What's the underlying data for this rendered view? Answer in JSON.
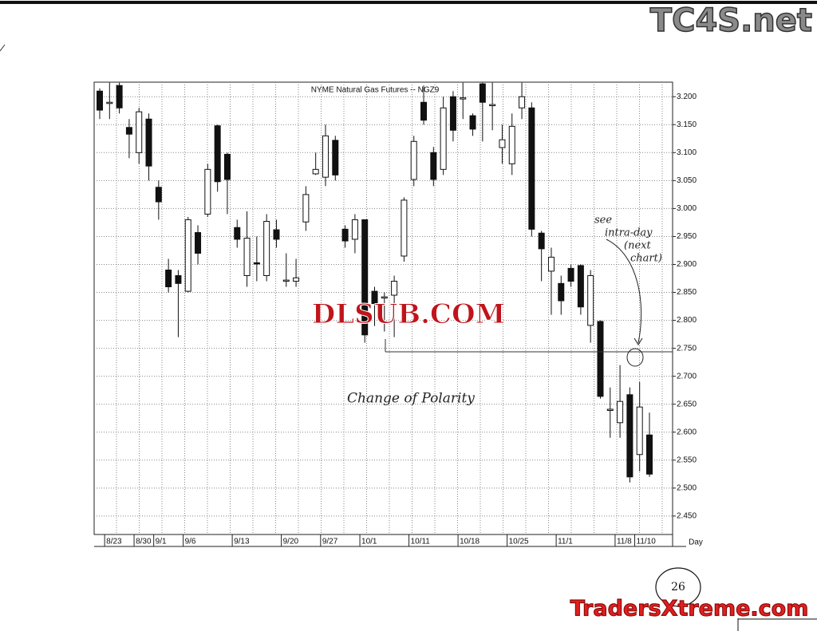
{
  "chart_data": {
    "type": "candlestick",
    "title": "NYME  Natural Gas Futures -- NGZ9",
    "x_label": "Day",
    "categories": [
      null,
      "8/23",
      null,
      null,
      "8/30",
      null,
      "9/1",
      null,
      null,
      "9/6",
      null,
      null,
      null,
      null,
      "9/13",
      null,
      null,
      null,
      null,
      "9/20",
      null,
      null,
      null,
      "9/27",
      null,
      null,
      null,
      "10/1",
      null,
      null,
      null,
      null,
      "10/11",
      null,
      null,
      null,
      null,
      "10/18",
      null,
      null,
      null,
      null,
      "10/25",
      null,
      null,
      null,
      null,
      "11/1",
      null,
      null,
      null,
      null,
      null,
      "11/8",
      null,
      "11/10",
      null
    ],
    "open": [
      3.21,
      3.19,
      3.22,
      3.145,
      3.1,
      3.16,
      3.038,
      2.89,
      2.88,
      2.852,
      2.957,
      2.99,
      3.148,
      3.097,
      2.966,
      2.88,
      2.903,
      2.88,
      2.962,
      2.872,
      2.87,
      2.976,
      3.062,
      3.056,
      3.122,
      2.963,
      2.945,
      2.98,
      2.852,
      2.842,
      2.845,
      2.915,
      3.052,
      3.19,
      3.1,
      3.07,
      3.2,
      3.196,
      3.166,
      3.223,
      3.186,
      3.109,
      3.08,
      3.18,
      3.18,
      2.956,
      2.888,
      2.866,
      2.893,
      2.898,
      2.791,
      2.798,
      2.641,
      2.617,
      2.667,
      2.56,
      2.595
    ],
    "high": [
      3.215,
      3.225,
      3.225,
      3.16,
      3.18,
      3.17,
      3.05,
      2.91,
      2.89,
      2.985,
      2.97,
      3.08,
      3.15,
      3.1,
      2.98,
      2.995,
      2.95,
      2.99,
      2.98,
      2.92,
      2.91,
      3.04,
      3.1,
      3.15,
      3.13,
      2.97,
      2.99,
      2.98,
      2.86,
      2.85,
      2.88,
      3.02,
      3.13,
      3.22,
      3.11,
      3.2,
      3.21,
      3.225,
      3.17,
      3.225,
      3.225,
      3.15,
      3.17,
      3.225,
      3.19,
      2.96,
      2.93,
      2.88,
      2.9,
      2.9,
      2.89,
      2.8,
      2.68,
      2.72,
      2.68,
      2.69,
      2.635
    ],
    "low": [
      3.16,
      3.16,
      3.17,
      3.09,
      3.08,
      3.05,
      2.98,
      2.85,
      2.77,
      2.85,
      2.9,
      2.985,
      3.03,
      2.99,
      2.93,
      2.86,
      2.87,
      2.87,
      2.93,
      2.86,
      2.86,
      2.96,
      3.06,
      3.04,
      3.05,
      2.93,
      2.92,
      2.76,
      2.79,
      2.78,
      2.77,
      2.905,
      3.04,
      3.15,
      3.04,
      3.06,
      3.12,
      3.16,
      3.13,
      3.12,
      3.14,
      3.08,
      3.06,
      3.16,
      2.95,
      2.87,
      2.81,
      2.81,
      2.86,
      2.81,
      2.76,
      2.66,
      2.59,
      2.59,
      2.51,
      2.53,
      2.52
    ],
    "close": [
      3.176,
      3.19,
      3.18,
      3.133,
      3.173,
      3.076,
      3.012,
      2.86,
      2.866,
      2.98,
      2.92,
      3.07,
      3.048,
      3.052,
      2.945,
      2.947,
      2.901,
      2.977,
      2.945,
      2.872,
      2.876,
      3.025,
      3.07,
      3.13,
      3.06,
      2.942,
      2.98,
      2.774,
      2.83,
      2.842,
      2.87,
      3.015,
      3.12,
      3.158,
      3.052,
      3.18,
      3.14,
      3.198,
      3.142,
      3.19,
      3.186,
      3.123,
      3.147,
      3.2,
      2.963,
      2.928,
      2.913,
      2.835,
      2.87,
      2.824,
      2.88,
      2.664,
      2.641,
      2.655,
      2.52,
      2.645,
      2.525
    ],
    "ylim": [
      2.417,
      3.226
    ],
    "yticks": [
      {
        "value": 3.2,
        "label": "3.200"
      },
      {
        "value": 3.15,
        "label": "3.150"
      },
      {
        "value": 3.1,
        "label": "3.100"
      },
      {
        "value": 3.05,
        "label": "3.050"
      },
      {
        "value": 3.0,
        "label": "3.000"
      },
      {
        "value": 2.95,
        "label": "2.950"
      },
      {
        "value": 2.9,
        "label": "2.900"
      },
      {
        "value": 2.85,
        "label": "2.850"
      },
      {
        "value": 2.8,
        "label": "2.800"
      },
      {
        "value": 2.75,
        "label": "2.750"
      },
      {
        "value": 2.7,
        "label": "2.700"
      },
      {
        "value": 2.65,
        "label": "2.650"
      },
      {
        "value": 2.6,
        "label": "2.600"
      },
      {
        "value": 2.55,
        "label": "2.550"
      },
      {
        "value": 2.5,
        "label": "2.500"
      },
      {
        "value": 2.45,
        "label": "2.450"
      }
    ],
    "grid": true,
    "annotations": {
      "polarity": "Change of Polarity",
      "see": "see",
      "intraday": "intra-day",
      "next": "(next",
      "chart": "chart)"
    }
  },
  "page": {
    "number": "26"
  },
  "watermarks": {
    "top": "TC4S.net",
    "middle": "DLSUB.COM",
    "bottom": "TradersXtreme.com"
  }
}
